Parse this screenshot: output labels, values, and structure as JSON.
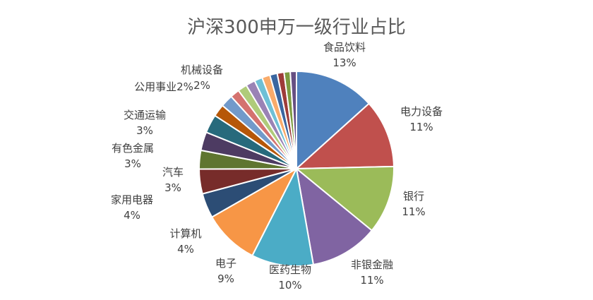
{
  "chart_data": {
    "type": "pie",
    "title": "沪深300申万一级行业占比",
    "slices": [
      {
        "name": "食品饮料",
        "value": 13,
        "label": "13%",
        "color": "#4F81BD"
      },
      {
        "name": "电力设备",
        "value": 11,
        "label": "11%",
        "color": "#C0504D"
      },
      {
        "name": "银行",
        "value": 11,
        "label": "11%",
        "color": "#9BBB59"
      },
      {
        "name": "非银金融",
        "value": 11,
        "label": "11%",
        "color": "#8064A2"
      },
      {
        "name": "医药生物",
        "value": 10,
        "label": "10%",
        "color": "#4BACC6"
      },
      {
        "name": "电子",
        "value": 9,
        "label": "9%",
        "color": "#F79646"
      },
      {
        "name": "计算机",
        "value": 4,
        "label": "4%",
        "color": "#2C4D75"
      },
      {
        "name": "家用电器",
        "value": 4,
        "label": "4%",
        "color": "#772C2A"
      },
      {
        "name": "汽车",
        "value": 3,
        "label": "3%",
        "color": "#5F7530"
      },
      {
        "name": "有色金属",
        "value": 3,
        "label": "3%",
        "color": "#4D3B62"
      },
      {
        "name": "交通运输",
        "value": 3,
        "label": "3%",
        "color": "#276A7C"
      },
      {
        "name": "公用事业",
        "value": 2,
        "label": "2%",
        "color": "#B65708"
      },
      {
        "name": "机械设备",
        "value": 2,
        "label": "2%",
        "color": "#729ACA"
      },
      {
        "name": "",
        "value": 1.5,
        "label": "",
        "color": "#D4726F"
      },
      {
        "name": "",
        "value": 1.5,
        "label": "",
        "color": "#AFCB7A"
      },
      {
        "name": "",
        "value": 1.5,
        "label": "",
        "color": "#9A83B5"
      },
      {
        "name": "",
        "value": 1.3,
        "label": "",
        "color": "#6FC0D6"
      },
      {
        "name": "",
        "value": 1.3,
        "label": "",
        "color": "#F9AB6B"
      },
      {
        "name": "",
        "value": 1.2,
        "label": "",
        "color": "#3A66A0"
      },
      {
        "name": "",
        "value": 1.1,
        "label": "",
        "color": "#9E3C39"
      },
      {
        "name": "",
        "value": 1.0,
        "label": "",
        "color": "#7D9B41"
      },
      {
        "name": "",
        "value": 1.0,
        "label": "",
        "color": "#664F83"
      }
    ]
  }
}
